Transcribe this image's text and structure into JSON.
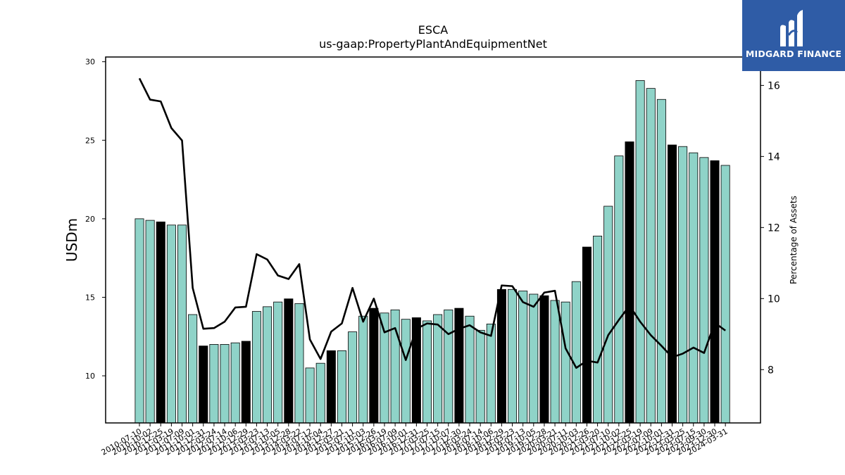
{
  "chart_data": {
    "type": "bar",
    "title": "ESCA",
    "subtitle": "us-gaap:PropertyPlantAndEquipmentNet",
    "ylabel": "USDm",
    "y2label": "Percentage of Assets",
    "ylim": [
      7,
      30.3
    ],
    "y2lim": [
      6.5,
      16.8
    ],
    "yticks": [
      10,
      15,
      20,
      25,
      30
    ],
    "y2ticks": [
      8,
      10,
      12,
      14,
      16
    ],
    "categories": [
      "2010-07-10",
      "2010-10-02",
      "2010-12-25",
      "2011-03-19",
      "2011-07-09",
      "2011-10-01",
      "2011-12-31",
      "2012-03-24",
      "2012-07-14",
      "2012-10-06",
      "2012-12-29",
      "2013-03-23",
      "2013-07-13",
      "2013-10-05",
      "2013-12-28",
      "2014-03-22",
      "2014-07-12",
      "2014-10-04",
      "2014-12-27",
      "2015-03-21",
      "2015-07-11",
      "2015-10-03",
      "2015-12-26",
      "2016-03-19",
      "2016-07-09",
      "2016-10-01",
      "2016-12-31",
      "2017-03-25",
      "2017-07-15",
      "2017-10-07",
      "2017-12-30",
      "2018-03-24",
      "2018-07-14",
      "2018-10-06",
      "2018-12-29",
      "2019-03-23",
      "2019-07-13",
      "2019-10-05",
      "2019-12-28",
      "2020-03-21",
      "2020-07-11",
      "2020-10-03",
      "2020-12-26",
      "2021-03-20",
      "2021-07-10",
      "2021-10-02",
      "2021-12-25",
      "2022-03-19",
      "2022-07-09",
      "2022-10-01",
      "2022-12-31",
      "2023-03-25",
      "2023-07-15",
      "2023-09-30",
      "2023-12-30",
      "2024-03-31"
    ],
    "values": [
      20.0,
      19.9,
      19.8,
      19.6,
      19.6,
      13.9,
      11.9,
      12.0,
      12.0,
      12.1,
      12.2,
      14.1,
      14.4,
      14.7,
      14.9,
      14.6,
      10.5,
      10.8,
      11.6,
      11.6,
      12.8,
      13.8,
      14.3,
      14.0,
      14.2,
      13.6,
      13.7,
      13.5,
      13.9,
      14.2,
      14.3,
      13.8,
      12.9,
      13.3,
      15.5,
      15.5,
      15.4,
      15.2,
      15.1,
      14.8,
      14.7,
      16.0,
      18.2,
      18.9,
      20.8,
      24.0,
      24.9,
      28.8,
      28.3,
      27.6,
      24.7,
      24.6,
      24.2,
      23.9,
      23.7,
      23.4
    ],
    "highlighted": [
      false,
      false,
      true,
      false,
      false,
      false,
      true,
      false,
      false,
      false,
      true,
      false,
      false,
      false,
      true,
      false,
      false,
      false,
      true,
      false,
      false,
      false,
      true,
      false,
      false,
      false,
      true,
      false,
      false,
      false,
      true,
      false,
      false,
      false,
      true,
      false,
      false,
      false,
      true,
      false,
      false,
      false,
      true,
      false,
      false,
      false,
      true,
      false,
      false,
      false,
      true,
      false,
      false,
      false,
      true,
      false
    ],
    "series": [
      {
        "axis": "right",
        "values": [
          16.2,
          15.6,
          15.55,
          14.8,
          14.45,
          10.3,
          9.15,
          9.17,
          9.35,
          9.75,
          9.77,
          11.25,
          11.1,
          10.65,
          10.55,
          10.97,
          8.85,
          8.3,
          9.07,
          9.3,
          10.3,
          9.35,
          10.0,
          9.05,
          9.17,
          8.27,
          9.15,
          9.3,
          9.27,
          9.0,
          9.15,
          9.25,
          9.05,
          8.95,
          10.37,
          10.35,
          9.9,
          9.77,
          10.17,
          10.22,
          8.6,
          8.05,
          8.25,
          8.2,
          8.97,
          9.4,
          9.8,
          9.35,
          8.97,
          8.67,
          8.35,
          8.45,
          8.62,
          8.47,
          9.32,
          9.1
        ]
      }
    ],
    "colors": {
      "bar_fill": "#8fd3c8",
      "bar_highlight": "#000000",
      "bar_edge": "#000000",
      "line": "#000000"
    }
  },
  "logo": {
    "text": "MIDGARD FINANCE",
    "bg": "#2f5ca6"
  }
}
